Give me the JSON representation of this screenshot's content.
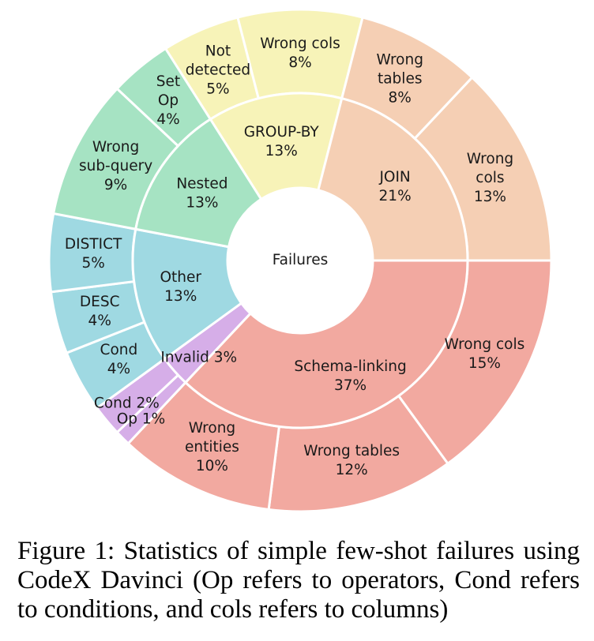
{
  "caption": "Figure 1: Statistics of simple few-shot failures using CodeX Davinci (Op refers to operators, Cond refers to conditions, and cols refers to columns)",
  "chart_data": {
    "type": "sunburst",
    "center_label": "Failures",
    "categories": [
      {
        "name": "Schema-linking",
        "value": 37,
        "color": "#F2A9A0",
        "children": [
          {
            "name": "Wrong cols",
            "value": 15,
            "lines": [
              "Wrong cols",
              "15%"
            ]
          },
          {
            "name": "Wrong tables",
            "value": 12,
            "lines": [
              "Wrong tables",
              "12%"
            ]
          },
          {
            "name": "Wrong entities",
            "value": 10,
            "lines": [
              "Wrong",
              "entities",
              "10%"
            ]
          }
        ]
      },
      {
        "name": "Invalid",
        "value": 3,
        "color": "#D6AEE8",
        "children": [
          {
            "name": "Op",
            "value": 1,
            "lines": [
              "Op 1%"
            ]
          },
          {
            "name": "Cond",
            "value": 2,
            "lines": [
              "Cond 2%"
            ]
          }
        ]
      },
      {
        "name": "Other",
        "value": 13,
        "color": "#9FD9E2",
        "children": [
          {
            "name": "Cond",
            "value": 4,
            "lines": [
              "Cond",
              "4%"
            ]
          },
          {
            "name": "DESC",
            "value": 4,
            "lines": [
              "DESC",
              "4%"
            ]
          },
          {
            "name": "DISTICT",
            "value": 5,
            "lines": [
              "DISTICT",
              "5%"
            ]
          }
        ]
      },
      {
        "name": "Nested",
        "value": 13,
        "color": "#A6E3C3",
        "children": [
          {
            "name": "Wrong sub-query",
            "value": 9,
            "lines": [
              "Wrong",
              "sub-query",
              "9%"
            ]
          },
          {
            "name": "Set Op",
            "value": 4,
            "lines": [
              "Set",
              "Op",
              "4%"
            ]
          }
        ]
      },
      {
        "name": "GROUP-BY",
        "value": 13,
        "color": "#F7F3B8",
        "children": [
          {
            "name": "Not detected",
            "value": 5,
            "lines": [
              "Not",
              "detected",
              "5%"
            ]
          },
          {
            "name": "Wrong cols",
            "value": 8,
            "lines": [
              "Wrong cols",
              "8%"
            ]
          }
        ]
      },
      {
        "name": "JOIN",
        "value": 21,
        "color": "#F5CFB4",
        "children": [
          {
            "name": "Wrong tables",
            "value": 8,
            "lines": [
              "Wrong",
              "tables",
              "8%"
            ]
          },
          {
            "name": "Wrong cols",
            "value": 13,
            "lines": [
              "Wrong",
              "cols",
              "13%"
            ]
          }
        ]
      }
    ],
    "inner_labels": [
      {
        "name": "Schema-linking",
        "lines": [
          "Schema-linking",
          "37%"
        ]
      },
      {
        "name": "Invalid",
        "lines": [
          "Invalid 3%"
        ]
      },
      {
        "name": "Other",
        "lines": [
          "Other",
          "13%"
        ]
      },
      {
        "name": "Nested",
        "lines": [
          "Nested",
          "13%"
        ]
      },
      {
        "name": "GROUP-BY",
        "lines": [
          "GROUP-BY",
          "13%"
        ]
      },
      {
        "name": "JOIN",
        "lines": [
          "JOIN",
          "21%"
        ]
      }
    ]
  }
}
